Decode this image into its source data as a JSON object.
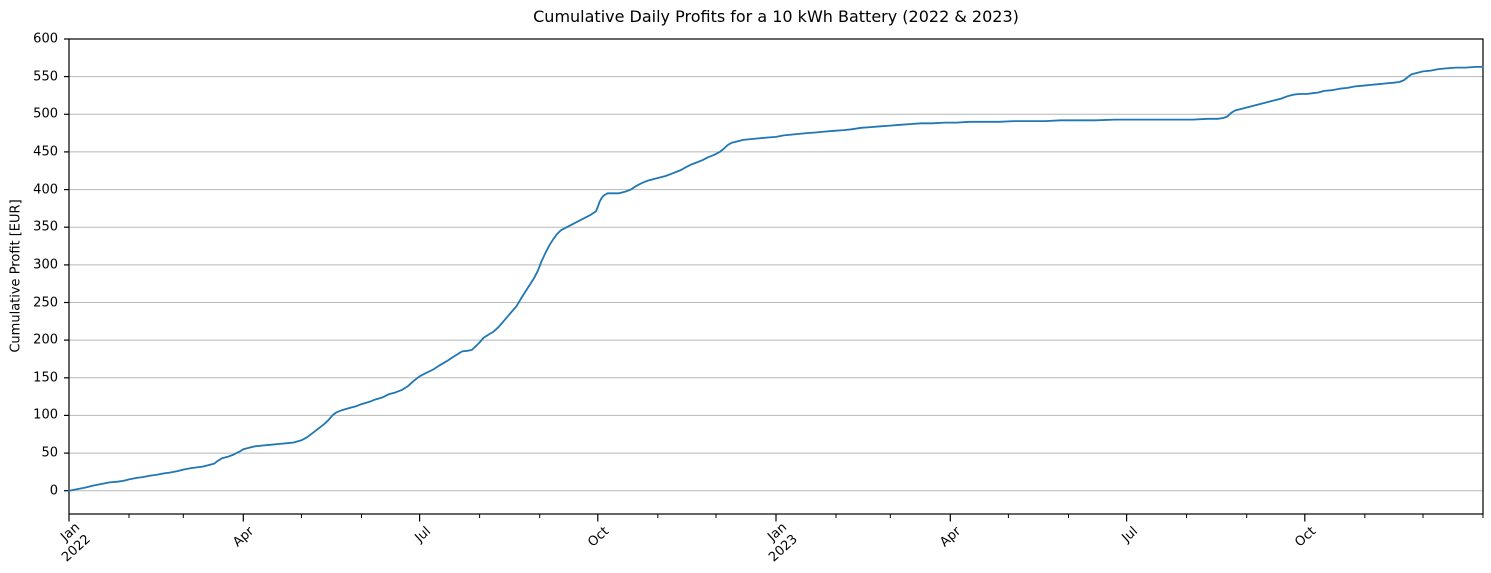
{
  "figure": {
    "title": "Cumulative Daily Profits for a 10 kWh Battery (2022 & 2023)"
  },
  "chart_data": {
    "type": "line",
    "title": "Cumulative Daily Profits for a 10 kWh Battery (2022 & 2023)",
    "xlabel": "",
    "ylabel": "Cumulative Profit [EUR]",
    "x_unit": "days since 2022-01-01",
    "x_range_days": [
      0,
      730
    ],
    "ylim": [
      0,
      600
    ],
    "y_ticks": [
      0,
      50,
      100,
      150,
      200,
      250,
      300,
      350,
      400,
      450,
      500,
      550,
      600
    ],
    "x_major_ticks": [
      {
        "day": 0,
        "label": "Jan\n2022"
      },
      {
        "day": 90,
        "label": "Apr"
      },
      {
        "day": 181,
        "label": "Jul"
      },
      {
        "day": 273,
        "label": "Oct"
      },
      {
        "day": 365,
        "label": "Jan\n2023"
      },
      {
        "day": 455,
        "label": "Apr"
      },
      {
        "day": 546,
        "label": "Jul"
      },
      {
        "day": 638,
        "label": "Oct"
      }
    ],
    "x_minor_tick_days": [
      31,
      59,
      120,
      151,
      212,
      243,
      304,
      334,
      396,
      424,
      485,
      516,
      577,
      608,
      669,
      699,
      730
    ],
    "grid": "horizontal",
    "legend": "none",
    "line_color": "#1f77b4",
    "grid_color": "#b8b8b8",
    "spine_color": "#000000",
    "series": [
      {
        "name": "Cumulative profit [EUR]",
        "points": [
          [
            0,
            0
          ],
          [
            4,
            2
          ],
          [
            8,
            4
          ],
          [
            13,
            7
          ],
          [
            17,
            9
          ],
          [
            21,
            11
          ],
          [
            25,
            12
          ],
          [
            28,
            13
          ],
          [
            31,
            15
          ],
          [
            35,
            17
          ],
          [
            38,
            18
          ],
          [
            42,
            20
          ],
          [
            45,
            21
          ],
          [
            49,
            23
          ],
          [
            52,
            24
          ],
          [
            56,
            26
          ],
          [
            59,
            28
          ],
          [
            63,
            30
          ],
          [
            66,
            31
          ],
          [
            69,
            32
          ],
          [
            72,
            34
          ],
          [
            75,
            36
          ],
          [
            77,
            40
          ],
          [
            79,
            43
          ],
          [
            82,
            45
          ],
          [
            85,
            48
          ],
          [
            88,
            52
          ],
          [
            90,
            55
          ],
          [
            93,
            57
          ],
          [
            96,
            59
          ],
          [
            100,
            60
          ],
          [
            104,
            61
          ],
          [
            108,
            62
          ],
          [
            112,
            63
          ],
          [
            116,
            64
          ],
          [
            120,
            67
          ],
          [
            123,
            71
          ],
          [
            126,
            77
          ],
          [
            129,
            83
          ],
          [
            132,
            89
          ],
          [
            134,
            94
          ],
          [
            136,
            100
          ],
          [
            138,
            104
          ],
          [
            141,
            107
          ],
          [
            145,
            110
          ],
          [
            148,
            112
          ],
          [
            151,
            115
          ],
          [
            155,
            118
          ],
          [
            158,
            121
          ],
          [
            162,
            124
          ],
          [
            165,
            128
          ],
          [
            168,
            130
          ],
          [
            172,
            134
          ],
          [
            175,
            139
          ],
          [
            178,
            146
          ],
          [
            181,
            152
          ],
          [
            184,
            156
          ],
          [
            188,
            161
          ],
          [
            191,
            166
          ],
          [
            195,
            172
          ],
          [
            198,
            177
          ],
          [
            201,
            182
          ],
          [
            203,
            185
          ],
          [
            206,
            186
          ],
          [
            208,
            187
          ],
          [
            210,
            192
          ],
          [
            212,
            197
          ],
          [
            214,
            203
          ],
          [
            217,
            208
          ],
          [
            219,
            211
          ],
          [
            222,
            218
          ],
          [
            225,
            227
          ],
          [
            228,
            236
          ],
          [
            231,
            245
          ],
          [
            234,
            258
          ],
          [
            237,
            270
          ],
          [
            240,
            282
          ],
          [
            242,
            292
          ],
          [
            244,
            305
          ],
          [
            246,
            316
          ],
          [
            248,
            326
          ],
          [
            250,
            334
          ],
          [
            252,
            341
          ],
          [
            254,
            346
          ],
          [
            257,
            350
          ],
          [
            260,
            354
          ],
          [
            263,
            358
          ],
          [
            266,
            362
          ],
          [
            269,
            366
          ],
          [
            272,
            371
          ],
          [
            273,
            377
          ],
          [
            274,
            384
          ],
          [
            275,
            389
          ],
          [
            276,
            392
          ],
          [
            278,
            395
          ],
          [
            284,
            395
          ],
          [
            287,
            397
          ],
          [
            290,
            400
          ],
          [
            293,
            405
          ],
          [
            296,
            409
          ],
          [
            299,
            412
          ],
          [
            302,
            414
          ],
          [
            305,
            416
          ],
          [
            308,
            418
          ],
          [
            311,
            421
          ],
          [
            314,
            424
          ],
          [
            316,
            426
          ],
          [
            318,
            429
          ],
          [
            321,
            433
          ],
          [
            324,
            436
          ],
          [
            327,
            439
          ],
          [
            330,
            443
          ],
          [
            333,
            446
          ],
          [
            336,
            450
          ],
          [
            338,
            454
          ],
          [
            340,
            459
          ],
          [
            342,
            462
          ],
          [
            345,
            464
          ],
          [
            348,
            466
          ],
          [
            352,
            467
          ],
          [
            356,
            468
          ],
          [
            360,
            469
          ],
          [
            365,
            470
          ],
          [
            369,
            472
          ],
          [
            373,
            473
          ],
          [
            377,
            474
          ],
          [
            381,
            475
          ],
          [
            386,
            476
          ],
          [
            390,
            477
          ],
          [
            395,
            478
          ],
          [
            400,
            479
          ],
          [
            404,
            480
          ],
          [
            409,
            482
          ],
          [
            414,
            483
          ],
          [
            419,
            484
          ],
          [
            424,
            485
          ],
          [
            429,
            486
          ],
          [
            434,
            487
          ],
          [
            440,
            488
          ],
          [
            446,
            488
          ],
          [
            452,
            489
          ],
          [
            458,
            489
          ],
          [
            465,
            490
          ],
          [
            472,
            490
          ],
          [
            480,
            490
          ],
          [
            488,
            491
          ],
          [
            496,
            491
          ],
          [
            504,
            491
          ],
          [
            512,
            492
          ],
          [
            520,
            492
          ],
          [
            530,
            492
          ],
          [
            540,
            493
          ],
          [
            550,
            493
          ],
          [
            560,
            493
          ],
          [
            570,
            493
          ],
          [
            580,
            493
          ],
          [
            588,
            494
          ],
          [
            593,
            494
          ],
          [
            596,
            495
          ],
          [
            598,
            497
          ],
          [
            600,
            502
          ],
          [
            602,
            505
          ],
          [
            605,
            507
          ],
          [
            608,
            509
          ],
          [
            611,
            511
          ],
          [
            614,
            513
          ],
          [
            617,
            515
          ],
          [
            620,
            517
          ],
          [
            623,
            519
          ],
          [
            626,
            521
          ],
          [
            629,
            524
          ],
          [
            632,
            526
          ],
          [
            635,
            527
          ],
          [
            639,
            527
          ],
          [
            642,
            528
          ],
          [
            645,
            529
          ],
          [
            648,
            531
          ],
          [
            652,
            532
          ],
          [
            656,
            534
          ],
          [
            660,
            535
          ],
          [
            664,
            537
          ],
          [
            668,
            538
          ],
          [
            672,
            539
          ],
          [
            676,
            540
          ],
          [
            680,
            541
          ],
          [
            684,
            542
          ],
          [
            687,
            543
          ],
          [
            689,
            545
          ],
          [
            691,
            549
          ],
          [
            693,
            553
          ],
          [
            696,
            555
          ],
          [
            699,
            557
          ],
          [
            703,
            558
          ],
          [
            707,
            560
          ],
          [
            711,
            561
          ],
          [
            716,
            562
          ],
          [
            721,
            562
          ],
          [
            726,
            563
          ],
          [
            730,
            563
          ]
        ]
      }
    ]
  }
}
